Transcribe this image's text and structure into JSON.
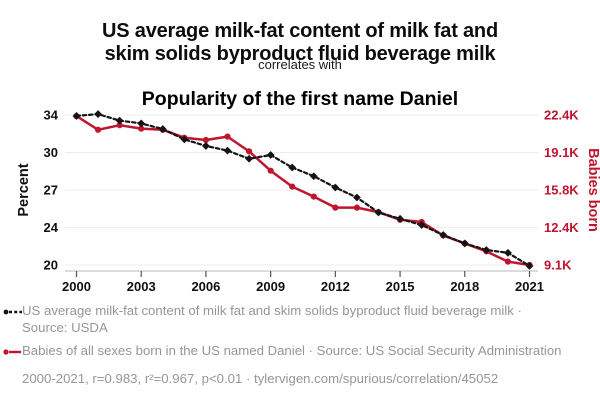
{
  "header": {
    "title_lines": [
      "US average milk-fat content of milk fat and",
      "skim solids byproduct fluid beverage milk"
    ],
    "connector": "correlates with",
    "subtitle": "Popularity of the first name Daniel"
  },
  "colors": {
    "accent_red": "#C0152F",
    "series_black": "#141414",
    "legend_gray": "#969696",
    "gridline": "#ececec",
    "axis_line": "#c8c8c8",
    "tick_mark": "#555555"
  },
  "chart_data": {
    "type": "line",
    "x": [
      2000,
      2001,
      2002,
      2003,
      2004,
      2005,
      2006,
      2007,
      2008,
      2009,
      2010,
      2011,
      2012,
      2013,
      2014,
      2015,
      2016,
      2017,
      2018,
      2019,
      2020,
      2021
    ],
    "x_tick_labels": [
      "2000",
      "2003",
      "2006",
      "2009",
      "2012",
      "2015",
      "2018",
      "2021"
    ],
    "x_tick_years": [
      2000,
      2003,
      2006,
      2009,
      2012,
      2015,
      2018,
      2021
    ],
    "left_axis": {
      "label": "Percent",
      "tick_labels": [
        "34",
        "30",
        "27",
        "24",
        "20"
      ],
      "tick_values": [
        34,
        30,
        27,
        24,
        20
      ]
    },
    "right_axis": {
      "label": "Babies born",
      "tick_labels": [
        "22.4K",
        "19.1K",
        "15.8K",
        "12.4K",
        "9.1K"
      ],
      "tick_values": [
        22400,
        19100,
        15800,
        12400,
        9100
      ]
    },
    "series": [
      {
        "name": "US average milk-fat content of milk fat and skim solids byproduct fluid beverage milk",
        "axis": "left",
        "style": "dashed",
        "marker": "diamond",
        "color": "#141414",
        "values": [
          33.9,
          34.1,
          33.4,
          33.1,
          32.5,
          31.4,
          30.7,
          30.2,
          29.5,
          29.8,
          28.8,
          28.1,
          27.2,
          26.4,
          25.2,
          24.7,
          24.2,
          23.2,
          22.3,
          21.6,
          21.3,
          19.9
        ]
      },
      {
        "name": "Babies of all sexes born in the US named Daniel",
        "axis": "right",
        "style": "solid",
        "marker": "circle",
        "color": "#C0152F",
        "values": [
          22300,
          21100,
          21500,
          21200,
          21100,
          20400,
          20200,
          20500,
          19200,
          17500,
          16100,
          15200,
          14200,
          14200,
          13800,
          13100,
          12900,
          11700,
          11000,
          10300,
          9400,
          9100
        ]
      }
    ],
    "grid": "horizontal-only",
    "legend_position": "bottom"
  },
  "legend": {
    "items": [
      {
        "label": "US average milk-fat content of milk fat and skim solids byproduct fluid beverage milk · Source: USDA"
      },
      {
        "label": "Babies of all sexes born in the US named Daniel · Source: US Social Security Administration"
      }
    ]
  },
  "footer": {
    "text": "2000-2021, r=0.983, r²=0.967, p<0.01 · tylervigen.com/spurious/correlation/45052"
  }
}
